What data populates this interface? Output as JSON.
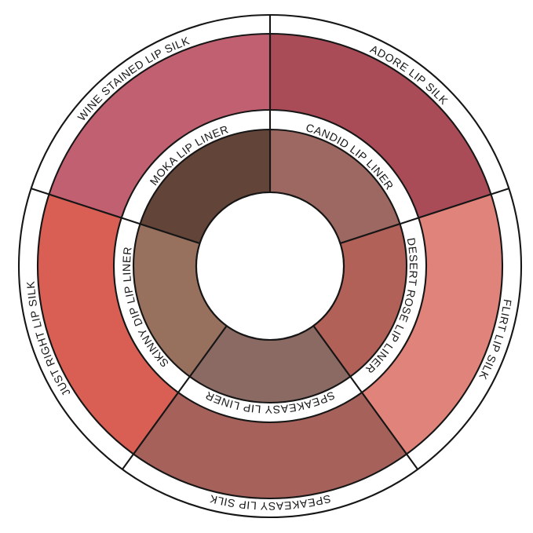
{
  "wheel": {
    "title": "lip-shade-pairing-wheel",
    "background": "#ffffff",
    "band_color": "#ffffff",
    "line_color": "#161616",
    "center_color": "#ffffff",
    "outer_ring": {
      "name": "lip-silk-shades",
      "segments": [
        {
          "label": "ADORE LIP SILK",
          "color": "#A94C58"
        },
        {
          "label": "FLIRT LIP SILK",
          "color": "#E0837A"
        },
        {
          "label": "SPEAKEASY LIP SILK",
          "color": "#A5615A"
        },
        {
          "label": "JUST RIGHT LIP SILK",
          "color": "#D95F55"
        },
        {
          "label": "WINE STAINED LIP SILK",
          "color": "#C16070"
        }
      ]
    },
    "inner_ring": {
      "name": "lip-liner-shades",
      "segments": [
        {
          "label": "CANDID LIP LINER",
          "color": "#9E6862"
        },
        {
          "label": "DESERT ROSE LIP LINER",
          "color": "#B26158"
        },
        {
          "label": "SPEAKEASY LIP LINER",
          "color": "#8B6A63"
        },
        {
          "label": "SKINNY DIP LIP LINER",
          "color": "#97705E"
        },
        {
          "label": "MOKA LIP LINER",
          "color": "#634438"
        }
      ]
    }
  }
}
